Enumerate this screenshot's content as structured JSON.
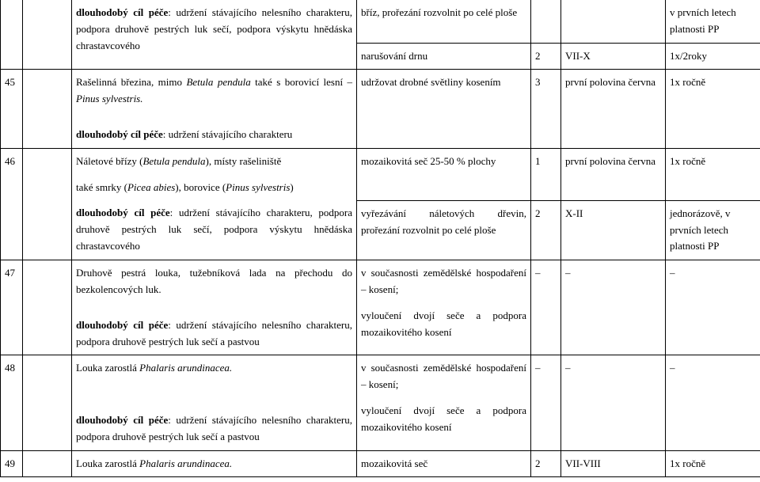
{
  "rows": {
    "r0": {
      "c": "<b>dlouhodobý cíl péče</b>: udržení stávajícího nelesního charakteru, podpora druhově pestrých luk sečí, podpora výskytu hnědáska chrastavcového",
      "d": "bříz, prořezání rozvolnit po celé ploše",
      "e": "",
      "f": "",
      "g": "v prvních letech platnosti PP"
    },
    "r0b": {
      "d": "narušování drnu",
      "e": "2",
      "f": "VII-X",
      "g": "1x/2roky"
    },
    "r45": {
      "a": "45",
      "c": "Rašelinná březina, mimo <i>Betula pendula</i> také s borovicí lesní – <i>Pinus sylvestris.</i>",
      "d": "udržovat drobné světliny kosením",
      "e": "3",
      "f": "první polovina června",
      "g": "1x ročně",
      "c2": "<b>dlouhodobý cíl péče</b>: udržení stávajícího charakteru"
    },
    "r46": {
      "a": "46",
      "c1": "Náletové břízy (<i>Betula pendula</i>), místy rašeliniště",
      "c2": "také smrky (<i>Picea abies</i>), borovice (<i>Pinus sylvestris</i>)",
      "c3": "<b>dlouhodobý cíl péče</b>: udržení stávajícího charakteru, podpora druhově pestrých luk sečí, podpora výskytu hnědáska chrastavcového",
      "d1": "mozaikovitá seč 25-50 % plochy",
      "e1": "1",
      "f1": "první polovina června",
      "g1": "1x ročně",
      "d2": "vyřezávání náletových dřevin, prořezání rozvolnit po celé ploše",
      "e2": "2",
      "f2": "X-II",
      "g2": "jednorázově, v prvních letech platnosti PP"
    },
    "r47": {
      "a": "47",
      "c1": "Druhově pestrá louka, tužebníková lada na přechodu do bezkolencových luk.",
      "c2": "<b>dlouhodobý cíl péče</b>: udržení stávajícího nelesního charakteru, podpora druhově pestrých luk sečí a pastvou",
      "d": "v současnosti zemědělské hospodaření – kosení;",
      "d2": "vyloučení dvojí seče a podpora mozaikovitého kosení",
      "e": "–",
      "f": "–",
      "g": "–"
    },
    "r48": {
      "a": "48",
      "c1": "Louka zarostlá <i>Phalaris arundinacea.</i>",
      "c2": "<b>dlouhodobý cíl péče</b>: udržení stávajícího nelesního charakteru, podpora druhově pestrých luk sečí a pastvou",
      "d": "v současnosti zemědělské hospodaření – kosení;",
      "d2": "vyloučení dvojí seče a podpora mozaikovitého kosení",
      "e": "–",
      "f": "–",
      "g": "–"
    },
    "r49": {
      "a": "49",
      "c": "Louka zarostlá <i>Phalaris arundinacea.</i>",
      "d": "mozaikovitá seč",
      "e": "2",
      "f": "VII-VIII",
      "g": "1x ročně"
    }
  }
}
